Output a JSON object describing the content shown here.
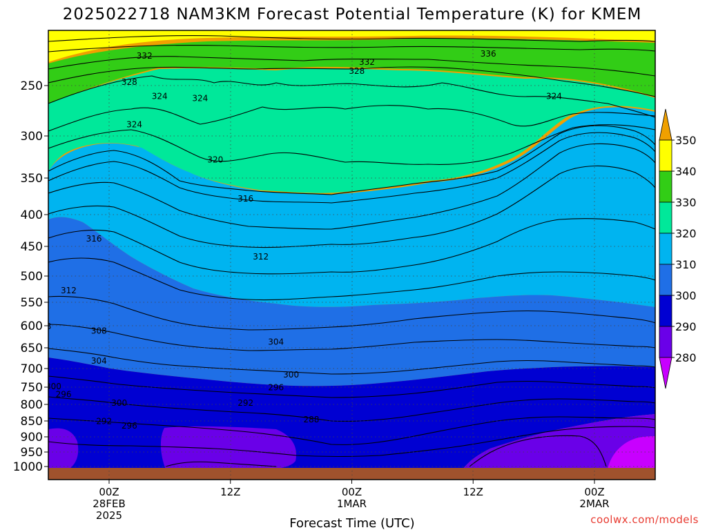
{
  "chart_data": {
    "type": "contour",
    "title": "2025022718 NAM3KM Forecast Potential Temperature (K) for KMEM",
    "xlabel": "Forecast Time (UTC)",
    "credit": "coolwx.com/models",
    "y_axis": {
      "scale": "pressure (reversed, log-like)",
      "ticks": [
        250,
        300,
        350,
        400,
        450,
        500,
        550,
        600,
        650,
        700,
        750,
        800,
        850,
        900,
        950,
        1000
      ]
    },
    "x_axis": {
      "ticks": [
        {
          "line1": "00Z",
          "line2": "28FEB",
          "line3": "2025"
        },
        {
          "line1": "12Z",
          "line2": "",
          "line3": ""
        },
        {
          "line1": "00Z",
          "line2": "1MAR",
          "line3": ""
        },
        {
          "line1": "12Z",
          "line2": "",
          "line3": ""
        },
        {
          "line1": "00Z",
          "line2": "2MAR",
          "line3": ""
        }
      ],
      "range_hours": [
        -6,
        54
      ]
    },
    "grid": true,
    "colorbar": {
      "levels": [
        280,
        290,
        300,
        310,
        320,
        330,
        340,
        350
      ],
      "colors": [
        "#c800ff",
        "#6a00e8",
        "#0000d2",
        "#1f6fe6",
        "#00b4f0",
        "#00e89a",
        "#32cd16",
        "#ffff00",
        "#f0a000"
      ]
    },
    "contour_labels": [
      {
        "value": "332",
        "hour": 3.5,
        "p": 222
      },
      {
        "value": "332",
        "hour": 25.5,
        "p": 228
      },
      {
        "value": "336",
        "hour": 37.5,
        "p": 220
      },
      {
        "value": "328",
        "hour": 24.5,
        "p": 237
      },
      {
        "value": "328",
        "hour": 2.0,
        "p": 248
      },
      {
        "value": "324",
        "hour": 5.0,
        "p": 262
      },
      {
        "value": "324",
        "hour": 44.0,
        "p": 262
      },
      {
        "value": "324",
        "hour": 9.0,
        "p": 264
      },
      {
        "value": "324",
        "hour": 2.5,
        "p": 290
      },
      {
        "value": "320",
        "hour": 10.5,
        "p": 330
      },
      {
        "value": "316",
        "hour": 13.5,
        "p": 380
      },
      {
        "value": "316",
        "hour": -1.5,
        "p": 440
      },
      {
        "value": "312",
        "hour": 15.0,
        "p": 470
      },
      {
        "value": "312",
        "hour": -4.0,
        "p": 530
      },
      {
        "value": "308",
        "hour": -6.5,
        "p": 605
      },
      {
        "value": "308",
        "hour": -1.0,
        "p": 615
      },
      {
        "value": "304",
        "hour": 16.5,
        "p": 640
      },
      {
        "value": "304",
        "hour": -1.0,
        "p": 685
      },
      {
        "value": "300",
        "hour": 18.0,
        "p": 720
      },
      {
        "value": "300",
        "hour": -5.5,
        "p": 752
      },
      {
        "value": "300",
        "hour": 1.0,
        "p": 800
      },
      {
        "value": "296",
        "hour": 16.5,
        "p": 755
      },
      {
        "value": "296",
        "hour": -4.5,
        "p": 775
      },
      {
        "value": "296",
        "hour": 2.0,
        "p": 870
      },
      {
        "value": "292",
        "hour": 13.5,
        "p": 800
      },
      {
        "value": "292",
        "hour": -7.0,
        "p": 848
      },
      {
        "value": "292",
        "hour": -0.5,
        "p": 855
      },
      {
        "value": "288",
        "hour": 20.0,
        "p": 850
      },
      {
        "value": "288",
        "hour": -17.0,
        "p": 998
      }
    ],
    "colorbar_labels": [
      "350",
      "340",
      "330",
      "320",
      "310",
      "300",
      "290",
      "280"
    ]
  }
}
